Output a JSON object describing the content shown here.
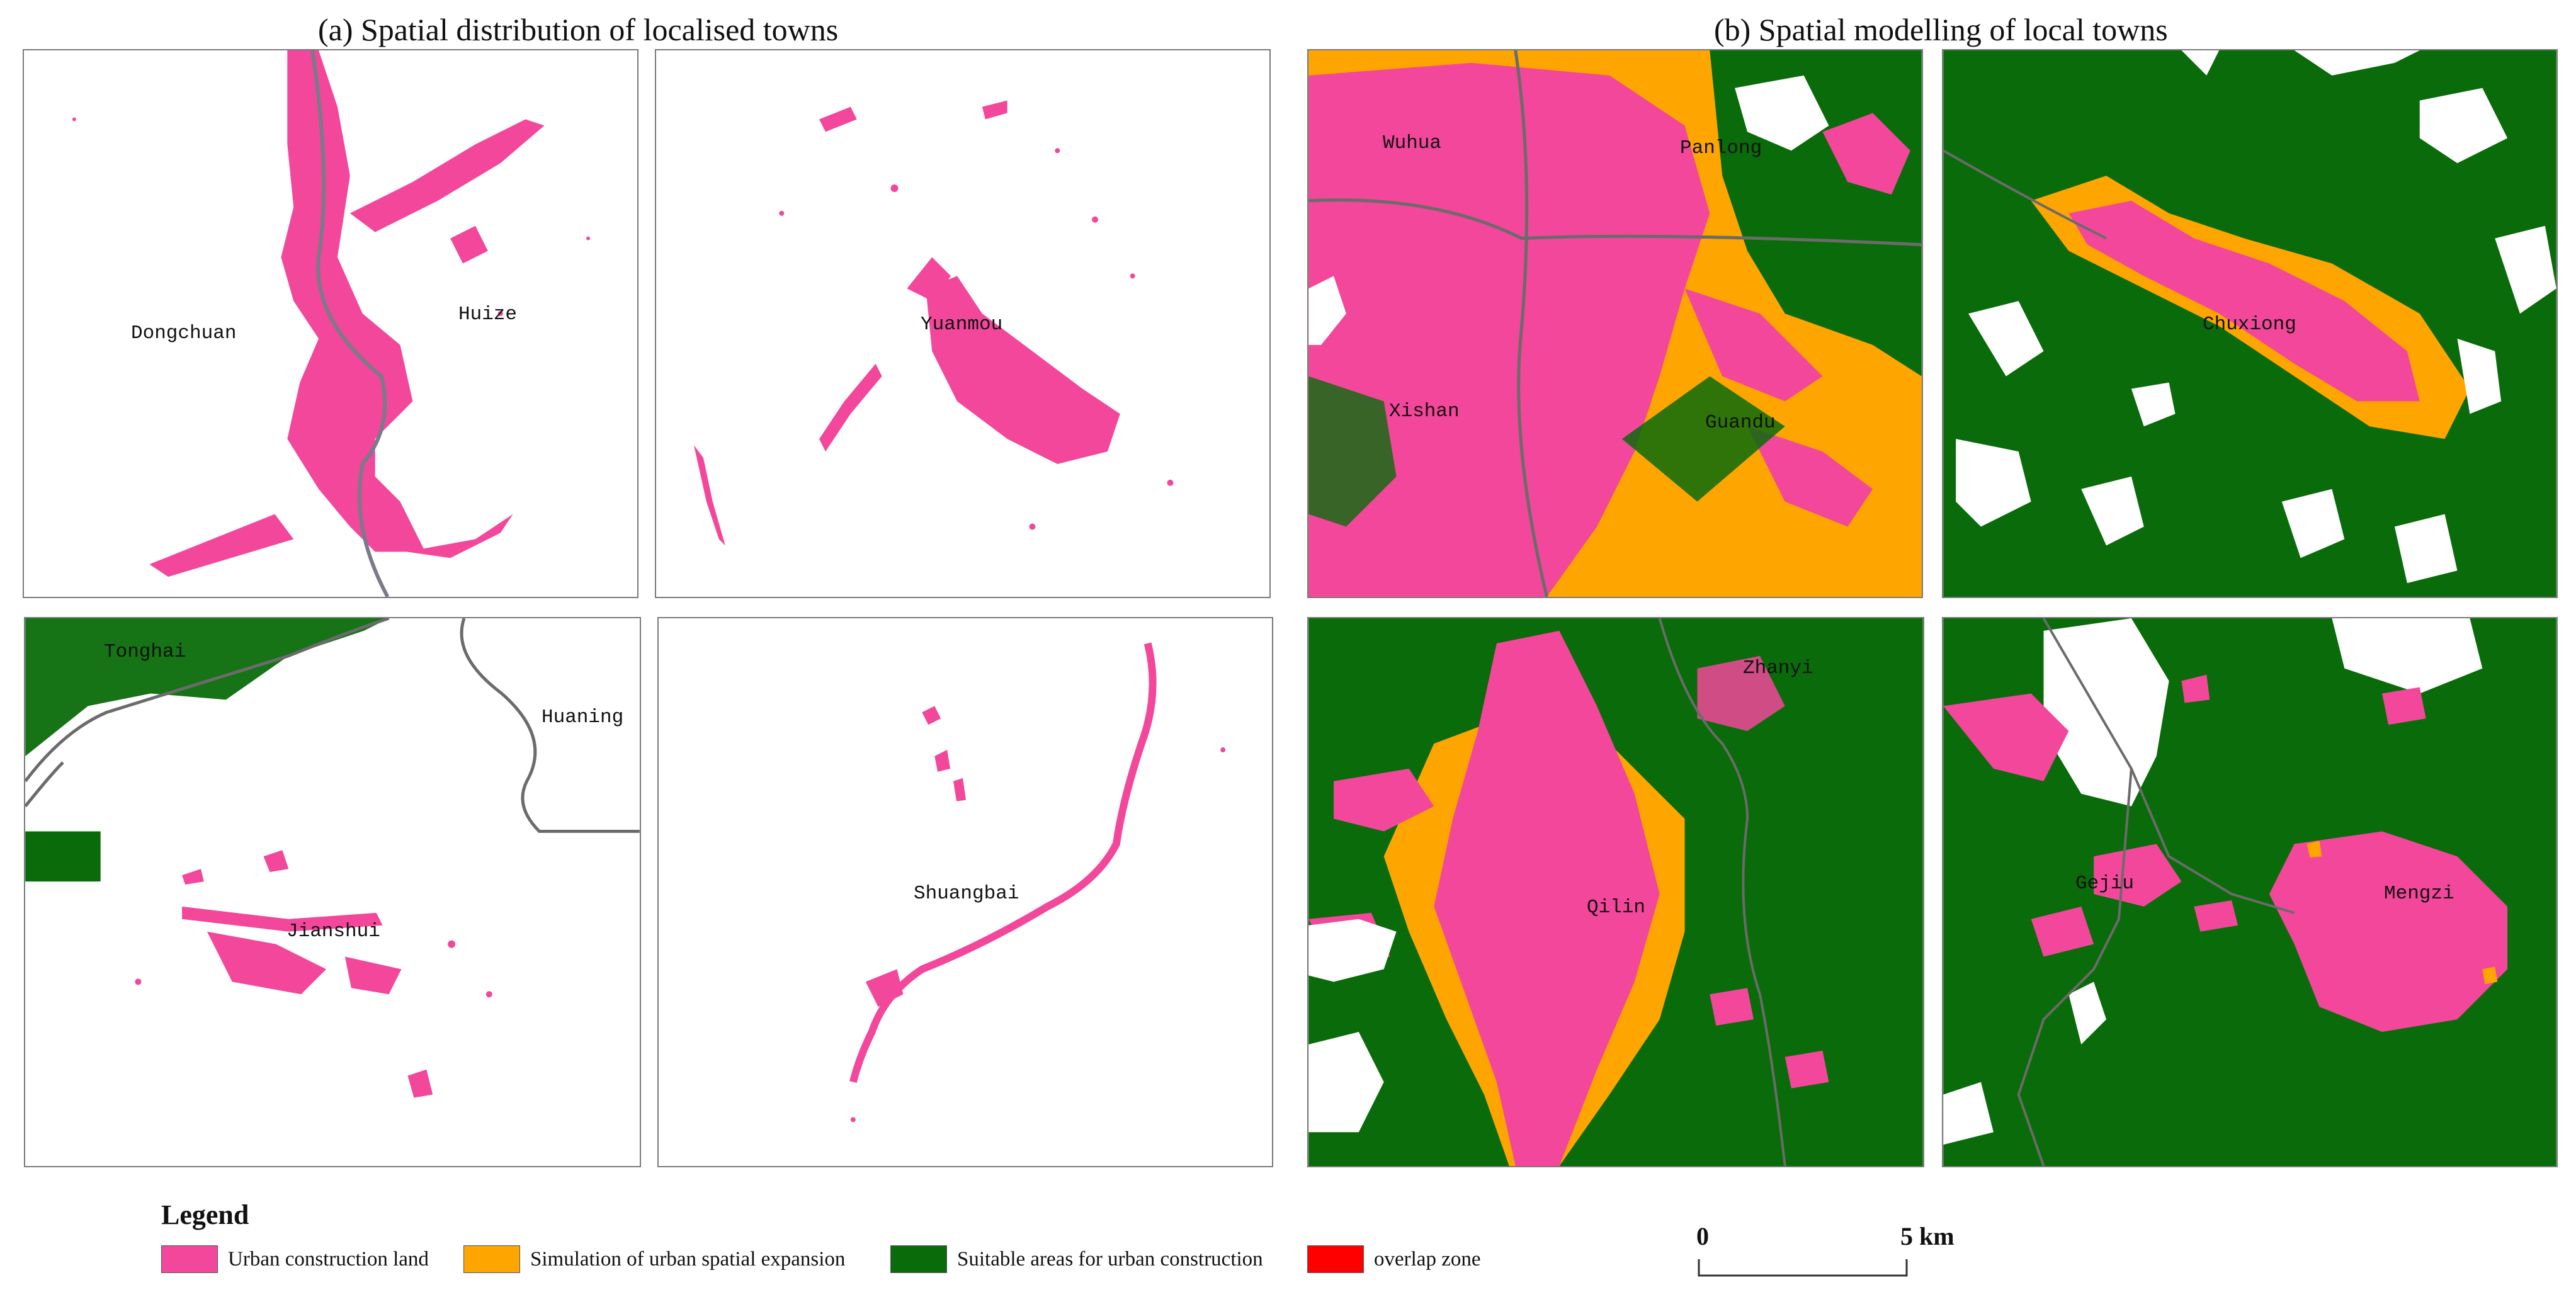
{
  "figure": {
    "titles": {
      "left": "(a) Spatial distribution of localised towns",
      "right": "(b) Spatial modelling of local towns"
    },
    "panels": [
      {
        "id": "a1",
        "towns": [
          "Dongchuan",
          "Huize"
        ]
      },
      {
        "id": "a2",
        "towns": [
          "Yuanmou"
        ]
      },
      {
        "id": "a3",
        "towns": [
          "Tonghai",
          "Huaning",
          "Jianshui"
        ]
      },
      {
        "id": "a4",
        "towns": [
          "Shuangbai"
        ]
      },
      {
        "id": "b1",
        "towns": [
          "Wuhua",
          "Panlong",
          "Xishan",
          "Guandu"
        ]
      },
      {
        "id": "b2",
        "towns": [
          "Chuxiong"
        ]
      },
      {
        "id": "b3",
        "towns": [
          "Zhanyi",
          "Qilin"
        ]
      },
      {
        "id": "b4",
        "towns": [
          "Gejiu",
          "Mengzi"
        ]
      }
    ]
  },
  "legend": {
    "title": "Legend",
    "items": [
      {
        "label": "Urban construction land",
        "color": "#f2479a"
      },
      {
        "label": "Simulation of urban spatial expansion",
        "color": "#ffa500"
      },
      {
        "label": "Suitable areas for urban construction",
        "color": "#0a6b0a"
      },
      {
        "label": "overlap zone",
        "color": "#ff0000"
      }
    ]
  },
  "scale_bar": {
    "start": "0",
    "end": "5 km"
  },
  "colors": {
    "urban": "#f2479a",
    "expansion": "#ffa500",
    "suitable": "#0a6b0a",
    "boundary": "#6b6b6b",
    "river": "#7a7a8a"
  }
}
